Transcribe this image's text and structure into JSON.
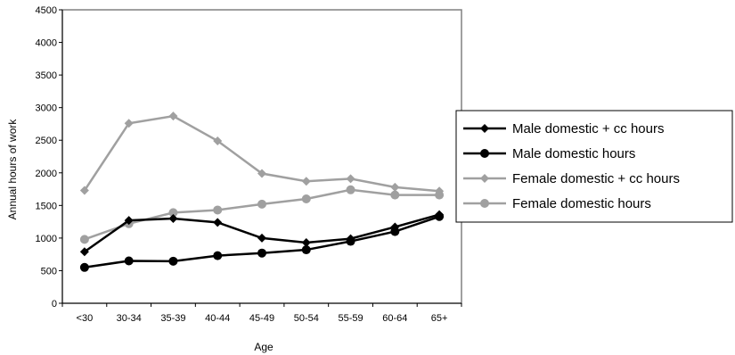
{
  "chart_data": {
    "type": "line",
    "title": "",
    "xlabel": "Age",
    "ylabel": "Annual hours of work",
    "categories": [
      "<30",
      "30-34",
      "35-39",
      "40-44",
      "45-49",
      "50-54",
      "55-59",
      "60-64",
      "65+"
    ],
    "ylim": [
      0,
      4500
    ],
    "yticks": [
      0,
      500,
      1000,
      1500,
      2000,
      2500,
      3000,
      3500,
      4000,
      4500
    ],
    "grid": false,
    "legend_position": "right",
    "series": [
      {
        "name": "Male domestic + cc hours",
        "marker": "diamond",
        "color": "#000000",
        "values": [
          790,
          1270,
          1300,
          1240,
          1000,
          930,
          990,
          1170,
          1360
        ]
      },
      {
        "name": "Male domestic hours",
        "marker": "circle",
        "color": "#000000",
        "values": [
          550,
          650,
          645,
          730,
          770,
          820,
          950,
          1100,
          1330
        ]
      },
      {
        "name": "Female domestic + cc hours",
        "marker": "diamond",
        "color": "#a0a0a0",
        "values": [
          1730,
          2760,
          2870,
          2490,
          1990,
          1870,
          1910,
          1780,
          1720
        ]
      },
      {
        "name": "Female domestic hours",
        "marker": "circle",
        "color": "#a0a0a0",
        "values": [
          980,
          1220,
          1390,
          1430,
          1520,
          1600,
          1740,
          1660,
          1660
        ]
      }
    ]
  }
}
